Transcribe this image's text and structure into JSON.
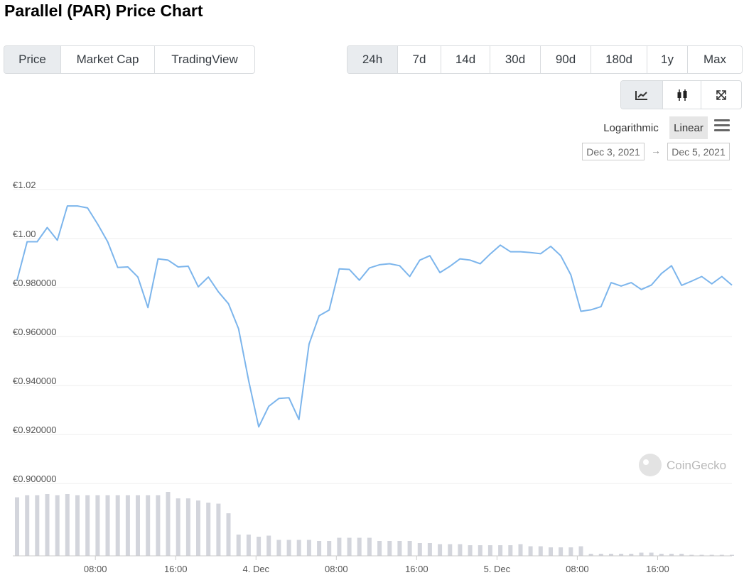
{
  "title": "Parallel (PAR) Price Chart",
  "view_tabs": [
    "Price",
    "Market Cap",
    "TradingView"
  ],
  "range_tabs": [
    "24h",
    "7d",
    "14d",
    "30d",
    "90d",
    "180d",
    "1y",
    "Max"
  ],
  "active_view": "Price",
  "active_range": "24h",
  "chart_type_buttons": [
    "line-chart-icon",
    "candlestick-icon",
    "expand-icon"
  ],
  "scale": {
    "log": "Logarithmic",
    "linear": "Linear",
    "active": "Linear"
  },
  "date_from": "Dec 3, 2021",
  "date_arrow": "→",
  "date_to": "Dec 5, 2021",
  "watermark": "CoinGecko",
  "colors": {
    "line": "#7cb5ec",
    "volume": "#d3d5dc",
    "active_button": "#e9ecef"
  },
  "chart_data": {
    "type": "line",
    "currency": "€",
    "y_ticks": [
      "€1.02",
      "€1.00",
      "€0.980000",
      "€0.960000",
      "€0.940000",
      "€0.920000",
      "€0.900000"
    ],
    "ylim": [
      0.9,
      1.02
    ],
    "x_ticks": [
      "08:00",
      "16:00",
      "4. Dec",
      "08:00",
      "16:00",
      "5. Dec",
      "08:00",
      "16:00"
    ],
    "x_tick_hours": [
      8,
      16,
      24,
      32,
      40,
      48,
      56,
      64
    ],
    "x_range_hours": [
      0.2,
      71.4
    ],
    "grid": true,
    "series": [
      {
        "values": [
          0.983,
          0.9987,
          0.9987,
          1.0045,
          0.9993,
          1.0133,
          1.0133,
          1.0125,
          1.0059,
          0.9987,
          0.9882,
          0.9884,
          0.9843,
          0.9718,
          0.9917,
          0.9912,
          0.9884,
          0.9887,
          0.9803,
          0.9843,
          0.9782,
          0.9734,
          0.9632,
          0.942,
          0.9231,
          0.9315,
          0.9347,
          0.935,
          0.9261,
          0.9569,
          0.9685,
          0.9708,
          0.9876,
          0.9874,
          0.983,
          0.988,
          0.9893,
          0.9897,
          0.9889,
          0.9845,
          0.9912,
          0.993,
          0.9861,
          0.9887,
          0.9917,
          0.9912,
          0.9897,
          0.9937,
          0.9973,
          0.9946,
          0.9946,
          0.9943,
          0.9938,
          0.9968,
          0.993,
          0.9852,
          0.9703,
          0.9709,
          0.9722,
          0.982,
          0.9806,
          0.982,
          0.9792,
          0.981,
          0.9857,
          0.9889,
          0.9809,
          0.9826,
          0.9845,
          0.9815,
          0.9845,
          0.981
        ]
      }
    ],
    "volume": [
      0.55,
      0.57,
      0.57,
      0.58,
      0.57,
      0.58,
      0.57,
      0.57,
      0.57,
      0.57,
      0.57,
      0.57,
      0.57,
      0.57,
      0.57,
      0.6,
      0.54,
      0.54,
      0.52,
      0.5,
      0.49,
      0.4,
      0.2,
      0.2,
      0.18,
      0.19,
      0.15,
      0.15,
      0.15,
      0.15,
      0.14,
      0.14,
      0.17,
      0.17,
      0.17,
      0.17,
      0.14,
      0.14,
      0.14,
      0.14,
      0.12,
      0.12,
      0.11,
      0.11,
      0.11,
      0.1,
      0.1,
      0.1,
      0.1,
      0.1,
      0.11,
      0.09,
      0.09,
      0.08,
      0.08,
      0.08,
      0.09,
      0.02,
      0.02,
      0.02,
      0.02,
      0.02,
      0.03,
      0.03,
      0.02,
      0.02,
      0.02,
      0.01,
      0.01,
      0.01,
      0.01,
      0.01
    ]
  }
}
